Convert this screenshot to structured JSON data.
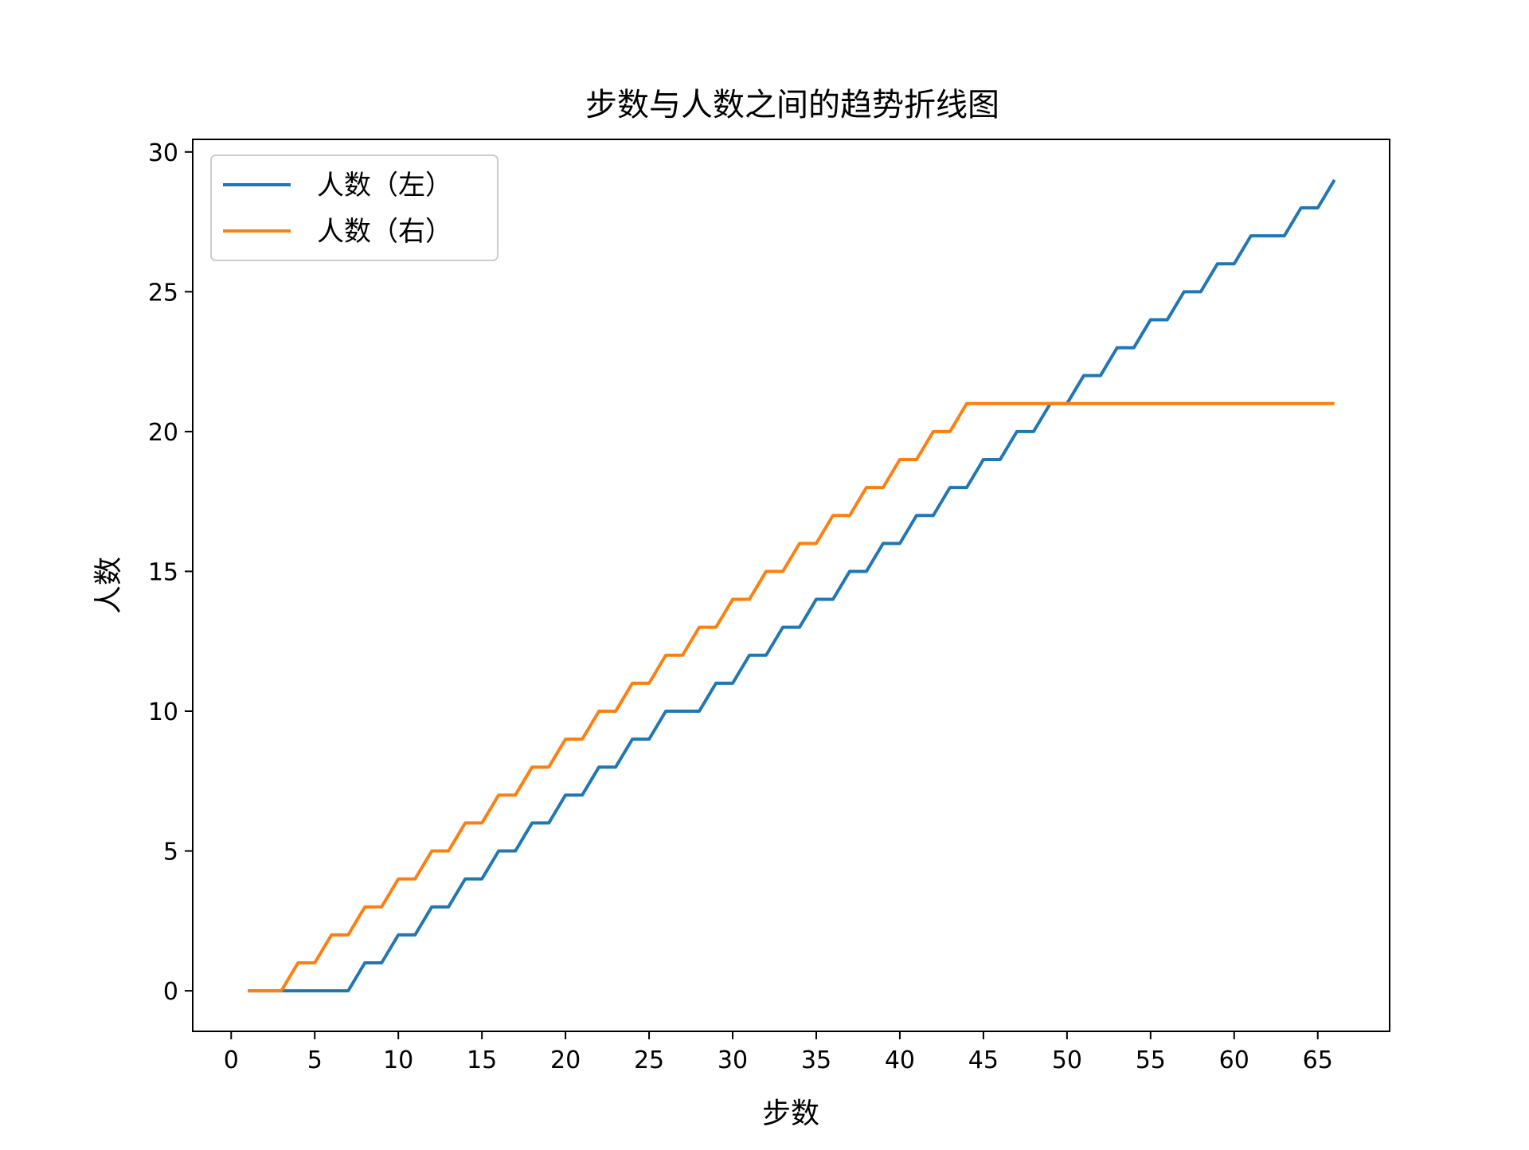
{
  "chart_data": {
    "type": "line",
    "title": "步数与人数之间的趋势折线图",
    "xlabel": "步数",
    "ylabel": "人数",
    "xlim": [
      -2.3,
      69.3
    ],
    "ylim": [
      -1.45,
      30.45
    ],
    "xticks": [
      0,
      5,
      10,
      15,
      20,
      25,
      30,
      35,
      40,
      45,
      50,
      55,
      60,
      65
    ],
    "yticks": [
      0,
      5,
      10,
      15,
      20,
      25,
      30
    ],
    "grid": false,
    "legend_position": "upper-left",
    "x": [
      1,
      2,
      3,
      4,
      5,
      6,
      7,
      8,
      9,
      10,
      11,
      12,
      13,
      14,
      15,
      16,
      17,
      18,
      19,
      20,
      21,
      22,
      23,
      24,
      25,
      26,
      27,
      28,
      29,
      30,
      31,
      32,
      33,
      34,
      35,
      36,
      37,
      38,
      39,
      40,
      41,
      42,
      43,
      44,
      45,
      46,
      47,
      48,
      49,
      50,
      51,
      52,
      53,
      54,
      55,
      56,
      57,
      58,
      59,
      60,
      61,
      62,
      63,
      64,
      65,
      66
    ],
    "series": [
      {
        "name": "人数（左）",
        "color": "#1f77b4",
        "values": [
          0,
          0,
          0,
          0,
          0,
          0,
          0,
          1,
          1,
          2,
          2,
          3,
          3,
          4,
          4,
          5,
          5,
          6,
          6,
          7,
          7,
          8,
          8,
          9,
          9,
          10,
          10,
          10,
          11,
          11,
          12,
          12,
          13,
          13,
          14,
          14,
          15,
          15,
          16,
          16,
          17,
          17,
          18,
          18,
          19,
          19,
          20,
          20,
          21,
          21,
          22,
          22,
          23,
          23,
          24,
          24,
          25,
          25,
          26,
          26,
          27,
          27,
          27,
          28,
          28,
          29
        ]
      },
      {
        "name": "人数（右）",
        "color": "#ff7f0e",
        "values": [
          0,
          0,
          0,
          1,
          1,
          2,
          2,
          3,
          3,
          4,
          4,
          5,
          5,
          6,
          6,
          7,
          7,
          8,
          8,
          9,
          9,
          10,
          10,
          11,
          11,
          12,
          12,
          13,
          13,
          14,
          14,
          15,
          15,
          16,
          16,
          17,
          17,
          18,
          18,
          19,
          19,
          20,
          20,
          21,
          21,
          21,
          21,
          21,
          21,
          21,
          21,
          21,
          21,
          21,
          21,
          21,
          21,
          21,
          21,
          21,
          21,
          21,
          21,
          21,
          21,
          21
        ]
      }
    ]
  }
}
